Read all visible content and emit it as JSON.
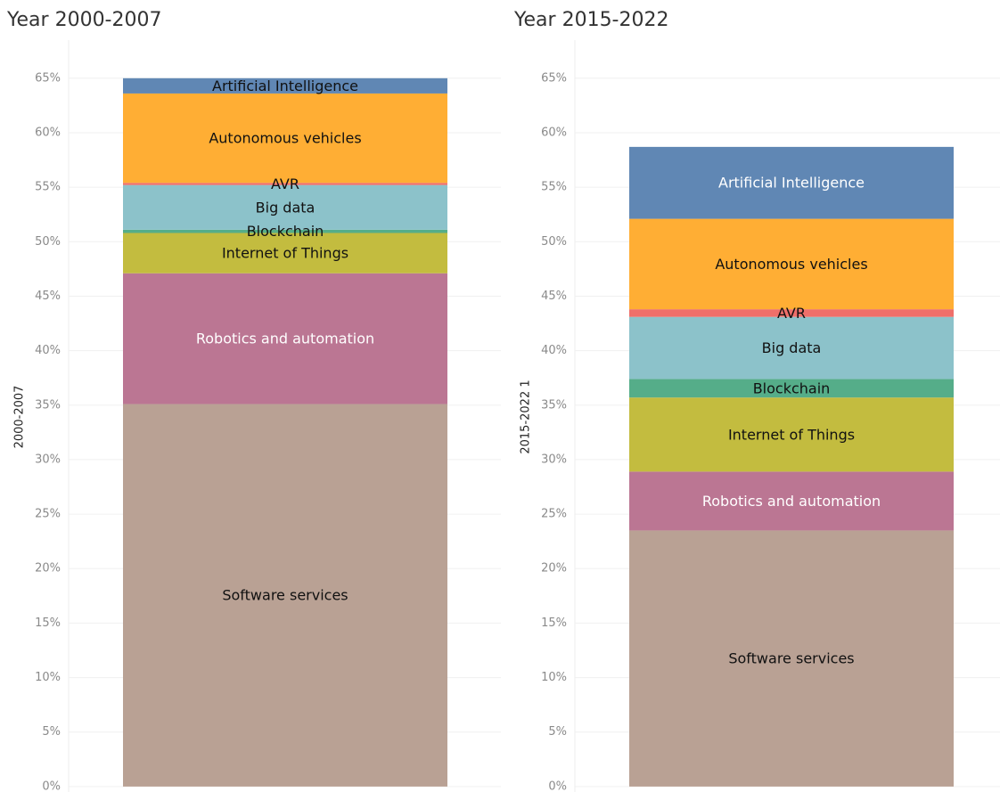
{
  "chart_data": [
    {
      "type": "bar",
      "stacked": true,
      "title": "Year 2000-2007",
      "ylabel": "2000-2007",
      "categories": [
        null
      ],
      "ylim": [
        -0.5,
        68.5
      ],
      "grid": true,
      "yticks": [
        {
          "value": 0,
          "label": "0%"
        },
        {
          "value": 5,
          "label": "5%"
        },
        {
          "value": 10,
          "label": "10%"
        },
        {
          "value": 15,
          "label": "15%"
        },
        {
          "value": 20,
          "label": "20%"
        },
        {
          "value": 25,
          "label": "25%"
        },
        {
          "value": 30,
          "label": "30%"
        },
        {
          "value": 35,
          "label": "35%"
        },
        {
          "value": 40,
          "label": "40%"
        },
        {
          "value": 45,
          "label": "45%"
        },
        {
          "value": 50,
          "label": "50%"
        },
        {
          "value": 55,
          "label": "55%"
        },
        {
          "value": 60,
          "label": "60%"
        },
        {
          "value": 65,
          "label": "65%"
        }
      ],
      "series": [
        {
          "name": "Software services",
          "color": "#b9a194",
          "values": [
            35.1
          ]
        },
        {
          "name": "Robotics and automation",
          "color": "#bb7693",
          "values": [
            12.0
          ]
        },
        {
          "name": "Internet of Things",
          "color": "#c3bc3f",
          "values": [
            3.7
          ]
        },
        {
          "name": "Blockchain",
          "color": "#55ad89",
          "values": [
            0.3
          ]
        },
        {
          "name": "Big data",
          "color": "#8cc2ca",
          "values": [
            4.1
          ]
        },
        {
          "name": "AVR",
          "color": "#ef6f6a",
          "values": [
            0.2
          ]
        },
        {
          "name": "Autonomous vehicles",
          "color": "#ffae34",
          "values": [
            8.2
          ]
        },
        {
          "name": "Artificial Intelligence",
          "color": "#6087b4",
          "values": [
            1.4
          ]
        }
      ]
    },
    {
      "type": "bar",
      "stacked": true,
      "title": "Year 2015-2022",
      "ylabel": "2015-2022 1",
      "categories": [
        null
      ],
      "ylim": [
        -0.5,
        68.5
      ],
      "grid": true,
      "yticks": [
        {
          "value": 0,
          "label": "0%"
        },
        {
          "value": 5,
          "label": "5%"
        },
        {
          "value": 10,
          "label": "10%"
        },
        {
          "value": 15,
          "label": "15%"
        },
        {
          "value": 20,
          "label": "20%"
        },
        {
          "value": 25,
          "label": "25%"
        },
        {
          "value": 30,
          "label": "30%"
        },
        {
          "value": 35,
          "label": "35%"
        },
        {
          "value": 40,
          "label": "40%"
        },
        {
          "value": 45,
          "label": "45%"
        },
        {
          "value": 50,
          "label": "50%"
        },
        {
          "value": 55,
          "label": "55%"
        },
        {
          "value": 60,
          "label": "60%"
        },
        {
          "value": 65,
          "label": "65%"
        }
      ],
      "series": [
        {
          "name": "Software services",
          "color": "#b9a194",
          "values": [
            23.5
          ]
        },
        {
          "name": "Robotics and automation",
          "color": "#bb7693",
          "values": [
            5.4
          ]
        },
        {
          "name": "Internet of Things",
          "color": "#c3bc3f",
          "values": [
            6.8
          ]
        },
        {
          "name": "Blockchain",
          "color": "#55ad89",
          "values": [
            1.7
          ]
        },
        {
          "name": "Big data",
          "color": "#8cc2ca",
          "values": [
            5.7
          ]
        },
        {
          "name": "AVR",
          "color": "#ef6f6a",
          "values": [
            0.7
          ]
        },
        {
          "name": "Autonomous vehicles",
          "color": "#ffae34",
          "values": [
            8.3
          ]
        },
        {
          "name": "Artificial Intelligence",
          "color": "#6087b4",
          "values": [
            6.6
          ]
        }
      ]
    }
  ]
}
